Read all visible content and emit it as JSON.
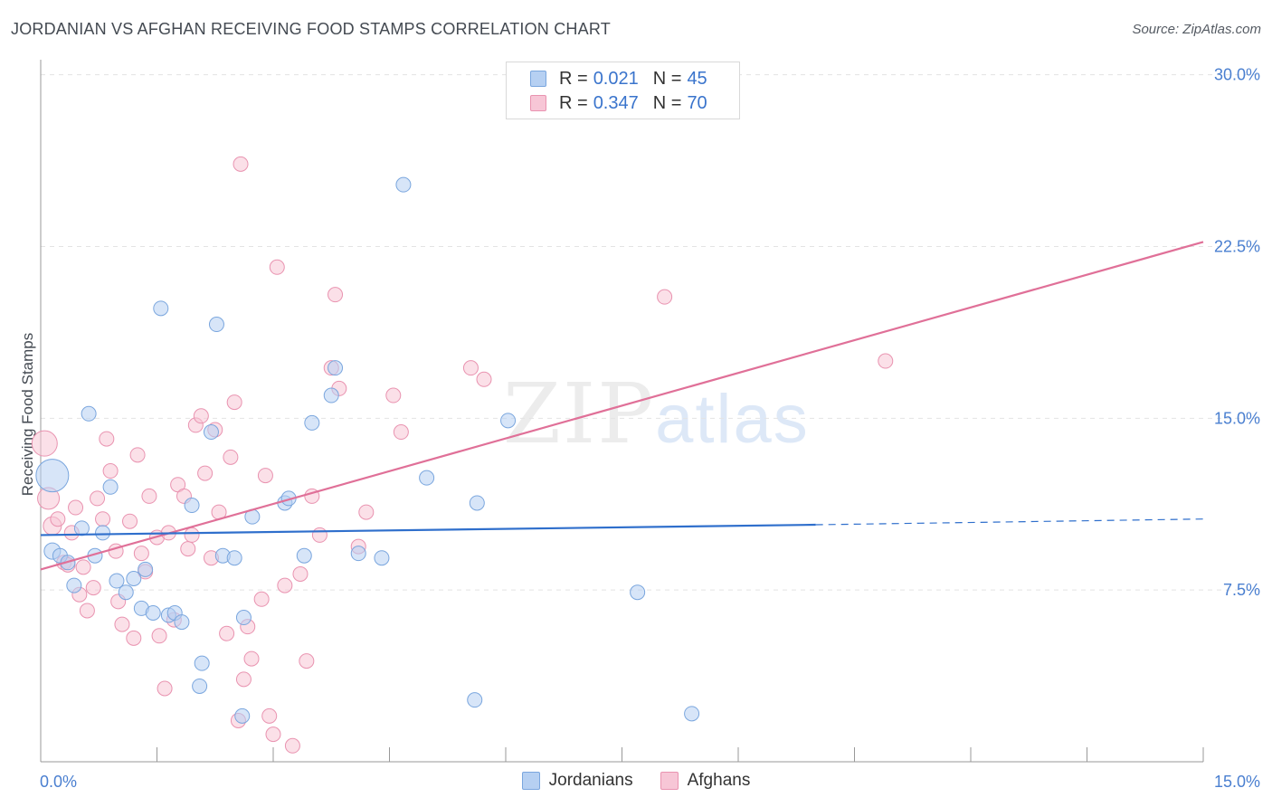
{
  "title": "JORDANIAN VS AFGHAN RECEIVING FOOD STAMPS CORRELATION CHART",
  "source": "Source: ZipAtlas.com",
  "legend": {
    "rows": [
      {
        "r_label": "R =",
        "r_value": "0.021",
        "n_label": "N =",
        "n_value": "45"
      },
      {
        "r_label": "R =",
        "r_value": "0.347",
        "n_label": "N =",
        "n_value": "70"
      }
    ]
  },
  "watermark": {
    "zip": "ZIP",
    "atlas": "atlas"
  },
  "colors": {
    "jordanian_fill": "#b6d0f2",
    "jordanian_stroke": "#7aa6de",
    "jordanian_line": "#2f6fcc",
    "afghan_fill": "#f7c6d6",
    "afghan_stroke": "#e993b0",
    "afghan_line": "#e07098",
    "tick_label": "#4a7fd0",
    "grid": "#e3e3e3"
  },
  "chart_data": {
    "type": "scatter",
    "title": "JORDANIAN VS AFGHAN RECEIVING FOOD STAMPS CORRELATION CHART",
    "xlabel": "",
    "ylabel": "Receiving Food Stamps",
    "xlim": [
      0,
      15
    ],
    "ylim": [
      0,
      30.5
    ],
    "x_tick_labels": [
      "0.0%",
      "15.0%"
    ],
    "y_ticks": [
      7.5,
      15.0,
      22.5,
      30.0
    ],
    "y_tick_labels": [
      "7.5%",
      "15.0%",
      "22.5%",
      "30.0%"
    ],
    "legend_position": "bottom-center",
    "series": [
      {
        "name": "Jordanians",
        "r": 0.021,
        "n": 45,
        "trend": {
          "x0": 0,
          "y0": 9.9,
          "x1": 10.0,
          "y1": 10.35,
          "dashed_to_x": 15.0,
          "dashed_to_y": 10.6
        },
        "points": [
          [
            0.15,
            12.5,
            18
          ],
          [
            0.15,
            9.2,
            9
          ],
          [
            0.25,
            9.0,
            8
          ],
          [
            0.35,
            8.7,
            8
          ],
          [
            0.43,
            7.7,
            8
          ],
          [
            0.53,
            10.2,
            8
          ],
          [
            0.62,
            15.2,
            8
          ],
          [
            0.7,
            9.0,
            8
          ],
          [
            0.8,
            10.0,
            8
          ],
          [
            0.9,
            12.0,
            8
          ],
          [
            0.98,
            7.9,
            8
          ],
          [
            1.1,
            7.4,
            8
          ],
          [
            1.2,
            8.0,
            8
          ],
          [
            1.3,
            6.7,
            8
          ],
          [
            1.35,
            8.4,
            8
          ],
          [
            1.45,
            6.5,
            8
          ],
          [
            1.55,
            19.8,
            8
          ],
          [
            1.65,
            6.4,
            8
          ],
          [
            1.73,
            6.5,
            8
          ],
          [
            1.82,
            6.1,
            8
          ],
          [
            1.95,
            11.2,
            8
          ],
          [
            2.05,
            3.3,
            8
          ],
          [
            2.08,
            4.3,
            8
          ],
          [
            2.2,
            14.4,
            8
          ],
          [
            2.27,
            19.1,
            8
          ],
          [
            2.35,
            9.0,
            8
          ],
          [
            2.5,
            8.9,
            8
          ],
          [
            2.6,
            2.0,
            8
          ],
          [
            2.62,
            6.3,
            8
          ],
          [
            2.73,
            10.7,
            8
          ],
          [
            3.15,
            11.3,
            8
          ],
          [
            3.2,
            11.5,
            8
          ],
          [
            3.4,
            9.0,
            8
          ],
          [
            3.5,
            14.8,
            8
          ],
          [
            3.75,
            16.0,
            8
          ],
          [
            3.8,
            17.2,
            8
          ],
          [
            4.1,
            9.1,
            8
          ],
          [
            4.4,
            8.9,
            8
          ],
          [
            4.68,
            25.2,
            8
          ],
          [
            4.98,
            12.4,
            8
          ],
          [
            5.6,
            2.7,
            8
          ],
          [
            5.63,
            11.3,
            8
          ],
          [
            6.03,
            14.9,
            8
          ],
          [
            7.7,
            7.4,
            8
          ],
          [
            8.4,
            2.1,
            8
          ]
        ]
      },
      {
        "name": "Afghans",
        "r": 0.347,
        "n": 70,
        "trend": {
          "x0": 0,
          "y0": 8.4,
          "x1": 15.0,
          "y1": 22.7
        },
        "points": [
          [
            0.05,
            13.9,
            14
          ],
          [
            0.1,
            11.5,
            12
          ],
          [
            0.15,
            10.3,
            10
          ],
          [
            0.22,
            10.6,
            8
          ],
          [
            0.3,
            8.7,
            8
          ],
          [
            0.35,
            8.6,
            8
          ],
          [
            0.4,
            10.0,
            8
          ],
          [
            0.45,
            11.1,
            8
          ],
          [
            0.5,
            7.3,
            8
          ],
          [
            0.55,
            8.5,
            8
          ],
          [
            0.6,
            6.6,
            8
          ],
          [
            0.68,
            7.6,
            8
          ],
          [
            0.73,
            11.5,
            8
          ],
          [
            0.8,
            10.6,
            8
          ],
          [
            0.85,
            14.1,
            8
          ],
          [
            0.9,
            12.7,
            8
          ],
          [
            0.97,
            9.2,
            8
          ],
          [
            1.0,
            7.0,
            8
          ],
          [
            1.05,
            6.0,
            8
          ],
          [
            1.15,
            10.5,
            8
          ],
          [
            1.2,
            5.4,
            8
          ],
          [
            1.25,
            13.4,
            8
          ],
          [
            1.3,
            9.1,
            8
          ],
          [
            1.35,
            8.3,
            8
          ],
          [
            1.4,
            11.6,
            8
          ],
          [
            1.5,
            9.8,
            8
          ],
          [
            1.53,
            5.5,
            8
          ],
          [
            1.6,
            3.2,
            8
          ],
          [
            1.65,
            10.0,
            8
          ],
          [
            1.72,
            6.2,
            8
          ],
          [
            1.77,
            12.1,
            8
          ],
          [
            1.85,
            11.6,
            8
          ],
          [
            1.9,
            9.3,
            8
          ],
          [
            1.95,
            9.9,
            8
          ],
          [
            2.0,
            14.7,
            8
          ],
          [
            2.07,
            15.1,
            8
          ],
          [
            2.12,
            12.6,
            8
          ],
          [
            2.2,
            8.9,
            8
          ],
          [
            2.25,
            14.5,
            8
          ],
          [
            2.3,
            10.9,
            8
          ],
          [
            2.4,
            5.6,
            8
          ],
          [
            2.45,
            13.3,
            8
          ],
          [
            2.5,
            15.7,
            8
          ],
          [
            2.55,
            1.8,
            8
          ],
          [
            2.58,
            26.1,
            8
          ],
          [
            2.62,
            3.6,
            8
          ],
          [
            2.67,
            5.9,
            8
          ],
          [
            2.72,
            4.5,
            8
          ],
          [
            2.85,
            7.1,
            8
          ],
          [
            2.9,
            12.5,
            8
          ],
          [
            2.95,
            2.0,
            8
          ],
          [
            3.0,
            1.2,
            8
          ],
          [
            3.05,
            21.6,
            8
          ],
          [
            3.15,
            7.7,
            8
          ],
          [
            3.25,
            0.7,
            8
          ],
          [
            3.35,
            8.2,
            8
          ],
          [
            3.43,
            4.4,
            8
          ],
          [
            3.5,
            11.6,
            8
          ],
          [
            3.6,
            9.9,
            8
          ],
          [
            3.75,
            17.2,
            8
          ],
          [
            3.8,
            20.4,
            8
          ],
          [
            3.85,
            16.3,
            8
          ],
          [
            4.1,
            9.4,
            8
          ],
          [
            4.2,
            10.9,
            8
          ],
          [
            4.55,
            16.0,
            8
          ],
          [
            4.65,
            14.4,
            8
          ],
          [
            5.55,
            17.2,
            8
          ],
          [
            5.72,
            16.7,
            8
          ],
          [
            8.05,
            20.3,
            8
          ],
          [
            10.9,
            17.5,
            8
          ]
        ]
      }
    ]
  },
  "bottom_legend": [
    {
      "label": "Jordanians"
    },
    {
      "label": "Afghans"
    }
  ]
}
